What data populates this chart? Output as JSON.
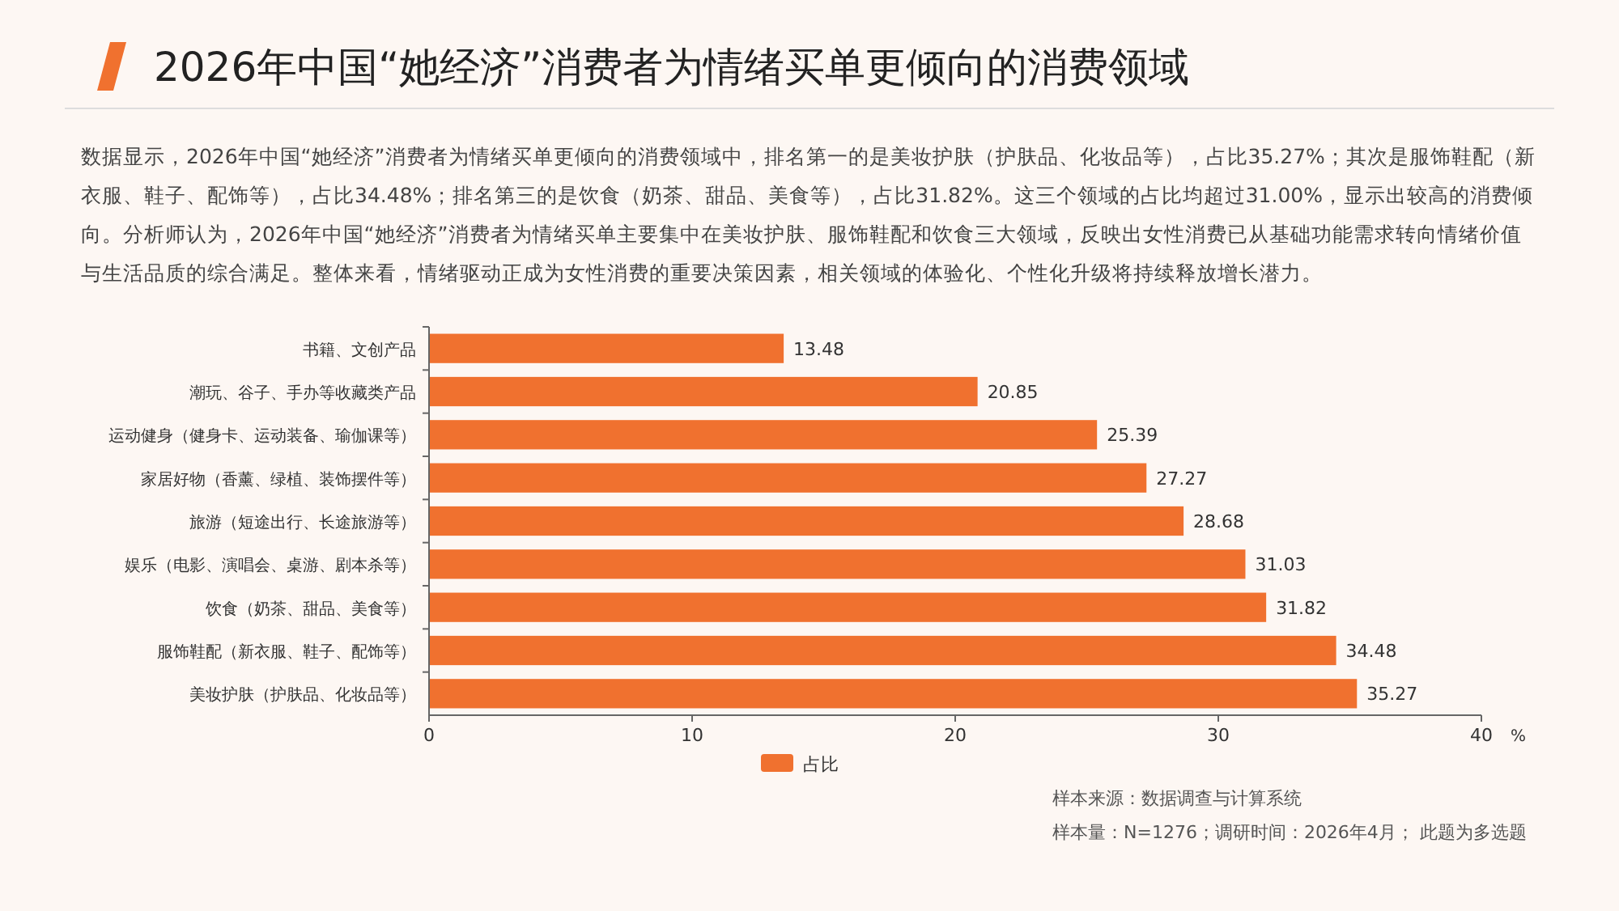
{
  "chart_data": {
    "type": "bar",
    "orientation": "horizontal",
    "title": "2026年中国“她经济”消费者为情绪买单更倾向的消费领域",
    "subtitle": "数据显示，2026年中国“她经济”消费者为情绪买单更倾向的消费领域中，排名第一的是美妆护肤（护肤品、化妆品等），占比35.27%；其次是服饰鞋配（新衣服、鞋子、配饰等），占比34.48%；排名第三的是饮食（奶茶、甜品、美食等），占比31.82%。这三个领域的占比均超过31.00%，显示出较高的消费倾向。分析师认为，2026年中国“她经济”消费者为情绪买单主要集中在美妆护肤、服饰鞋配和饮食三大领域，反映出女性消费已从基础功能需求转向情绪价值与生活品质的综合满足。整体来看，情绪驱动正成为女性消费的重要决策因素，相关领域的体验化、个性化升级将持续释放增长潜力。",
    "categories": [
      "书籍、文创产品",
      "潮玩、谷子、手办等收藏类产品",
      "运动健身（健身卡、运动装备、瑜伽课等）",
      "家居好物（香薰、绿植、装饰摆件等）",
      "旅游（短途出行、长途旅游等）",
      "娱乐（电影、演唱会、桌游、剧本杀等）",
      "饮食（奶茶、甜品、美食等）",
      "服饰鞋配（新衣服、鞋子、配饰等）",
      "美妆护肤（护肤品、化妆品等）"
    ],
    "series": [
      {
        "name": "占比",
        "color": "#f0712f",
        "values": [
          13.48,
          20.85,
          25.39,
          27.27,
          28.68,
          31.03,
          31.82,
          34.48,
          35.27
        ]
      }
    ],
    "xlim": [
      0,
      40
    ],
    "xticks": [
      0,
      10,
      20,
      30,
      40
    ],
    "xlabel": "%",
    "data_labels": true,
    "legend": "bottom",
    "annotations": [
      "样本来源：数据调查与计算系统",
      "样本量：N=1276；调研时间：2026年4月； 此题为多选题"
    ]
  }
}
